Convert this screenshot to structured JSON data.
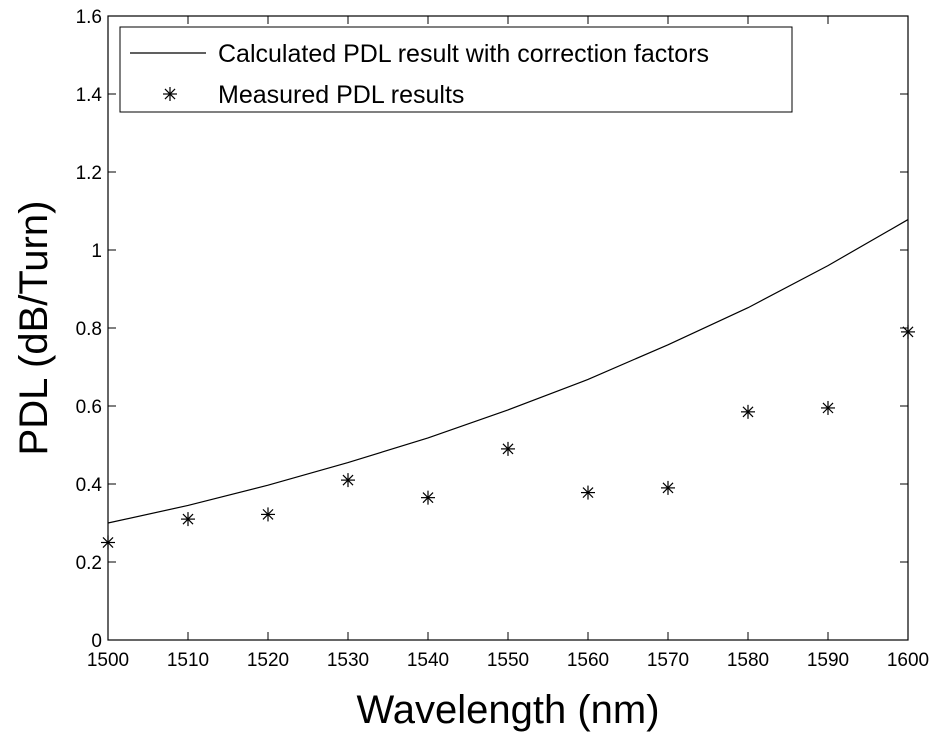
{
  "chart_data": {
    "type": "line",
    "title": "",
    "xlabel": "Wavelength (nm)",
    "ylabel": "PDL (dB/Turn)",
    "xlim": [
      1500,
      1600
    ],
    "ylim": [
      0,
      1.6
    ],
    "xticks": [
      1500,
      1510,
      1520,
      1530,
      1540,
      1550,
      1560,
      1570,
      1580,
      1590,
      1600
    ],
    "yticks": [
      0,
      0.2,
      0.4,
      0.6,
      0.8,
      1,
      1.2,
      1.4,
      1.6
    ],
    "grid": false,
    "legend_position": "top-left",
    "series": [
      {
        "name": "Calculated PDL result with correction factors",
        "style": "line",
        "color": "#000000",
        "x": [
          1500,
          1510,
          1520,
          1530,
          1540,
          1550,
          1560,
          1570,
          1580,
          1590,
          1600
        ],
        "y": [
          0.3,
          0.345,
          0.397,
          0.455,
          0.518,
          0.59,
          0.668,
          0.757,
          0.852,
          0.96,
          1.078
        ]
      },
      {
        "name": "Measured PDL results",
        "style": "marker",
        "marker": "asterisk",
        "color": "#000000",
        "x": [
          1500,
          1510,
          1520,
          1530,
          1540,
          1550,
          1560,
          1570,
          1580,
          1590,
          1600
        ],
        "y": [
          0.25,
          0.31,
          0.322,
          0.41,
          0.365,
          0.49,
          0.378,
          0.39,
          0.585,
          0.595,
          0.79
        ]
      }
    ]
  }
}
